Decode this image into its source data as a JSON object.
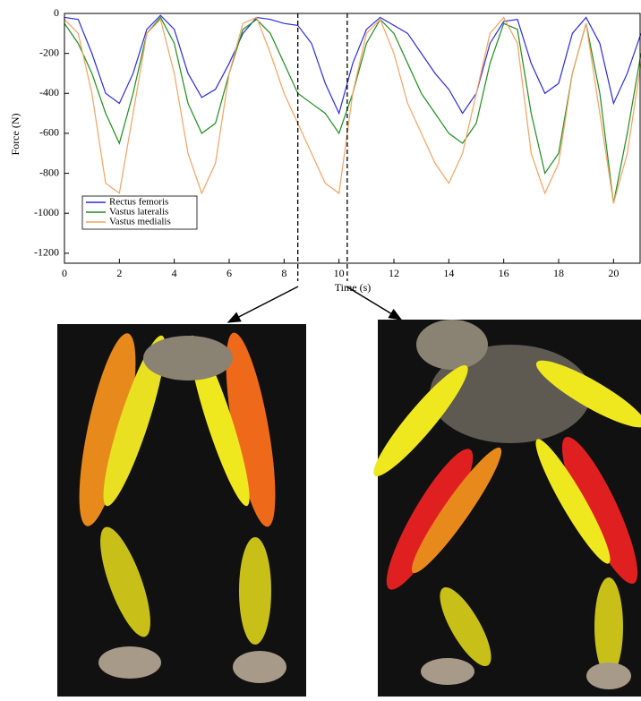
{
  "chart_data": {
    "type": "line",
    "x": [
      0,
      0.5,
      1,
      1.5,
      2,
      2.5,
      3,
      3.5,
      4,
      4.5,
      5,
      5.5,
      6,
      6.5,
      7,
      7.5,
      8,
      8.5,
      9,
      9.5,
      10,
      10.5,
      11,
      11.5,
      12,
      12.5,
      13,
      13.5,
      14,
      14.5,
      15,
      15.5,
      16,
      16.5,
      17,
      17.5,
      18,
      18.5,
      19,
      19.5,
      20,
      20.5,
      21
    ],
    "series": [
      {
        "name": "Rectus femoris",
        "color": "#2b2bdc",
        "values": [
          -20,
          -30,
          -200,
          -400,
          -450,
          -300,
          -80,
          -10,
          -80,
          -300,
          -420,
          -380,
          -250,
          -100,
          -20,
          -30,
          -50,
          -60,
          -150,
          -350,
          -500,
          -250,
          -80,
          -20,
          -60,
          -100,
          -200,
          -300,
          -380,
          -500,
          -400,
          -150,
          -40,
          -30,
          -250,
          -400,
          -350,
          -100,
          -20,
          -150,
          -450,
          -300,
          -100
        ]
      },
      {
        "name": "Vastus lateralis",
        "color": "#1e8c1e",
        "values": [
          -50,
          -150,
          -300,
          -500,
          -650,
          -400,
          -100,
          -20,
          -150,
          -450,
          -600,
          -550,
          -300,
          -80,
          -30,
          -100,
          -250,
          -400,
          -450,
          -500,
          -600,
          -400,
          -150,
          -30,
          -100,
          -250,
          -400,
          -500,
          -600,
          -650,
          -550,
          -250,
          -50,
          -80,
          -500,
          -800,
          -700,
          -300,
          -50,
          -400,
          -950,
          -600,
          -200
        ]
      },
      {
        "name": "Vastus medialis",
        "color": "#f4a262",
        "values": [
          -30,
          -100,
          -400,
          -850,
          -900,
          -500,
          -100,
          -30,
          -300,
          -700,
          -900,
          -750,
          -300,
          -50,
          -20,
          -200,
          -400,
          -550,
          -700,
          -850,
          -900,
          -400,
          -100,
          -30,
          -200,
          -450,
          -600,
          -750,
          -850,
          -700,
          -400,
          -100,
          -20,
          -150,
          -700,
          -900,
          -750,
          -300,
          -50,
          -500,
          -950,
          -700,
          -250
        ]
      }
    ],
    "xlabel": "Time (s)",
    "ylabel": "Force (N)",
    "xlim": [
      0,
      21
    ],
    "ylim": [
      -1250,
      0
    ],
    "xticks": [
      0,
      2,
      4,
      6,
      8,
      10,
      12,
      14,
      16,
      18,
      20
    ],
    "yticks": [
      0,
      -200,
      -400,
      -600,
      -800,
      -1000,
      -1200
    ],
    "vlines": [
      8.5,
      10.3
    ],
    "legend": "lower left"
  }
}
